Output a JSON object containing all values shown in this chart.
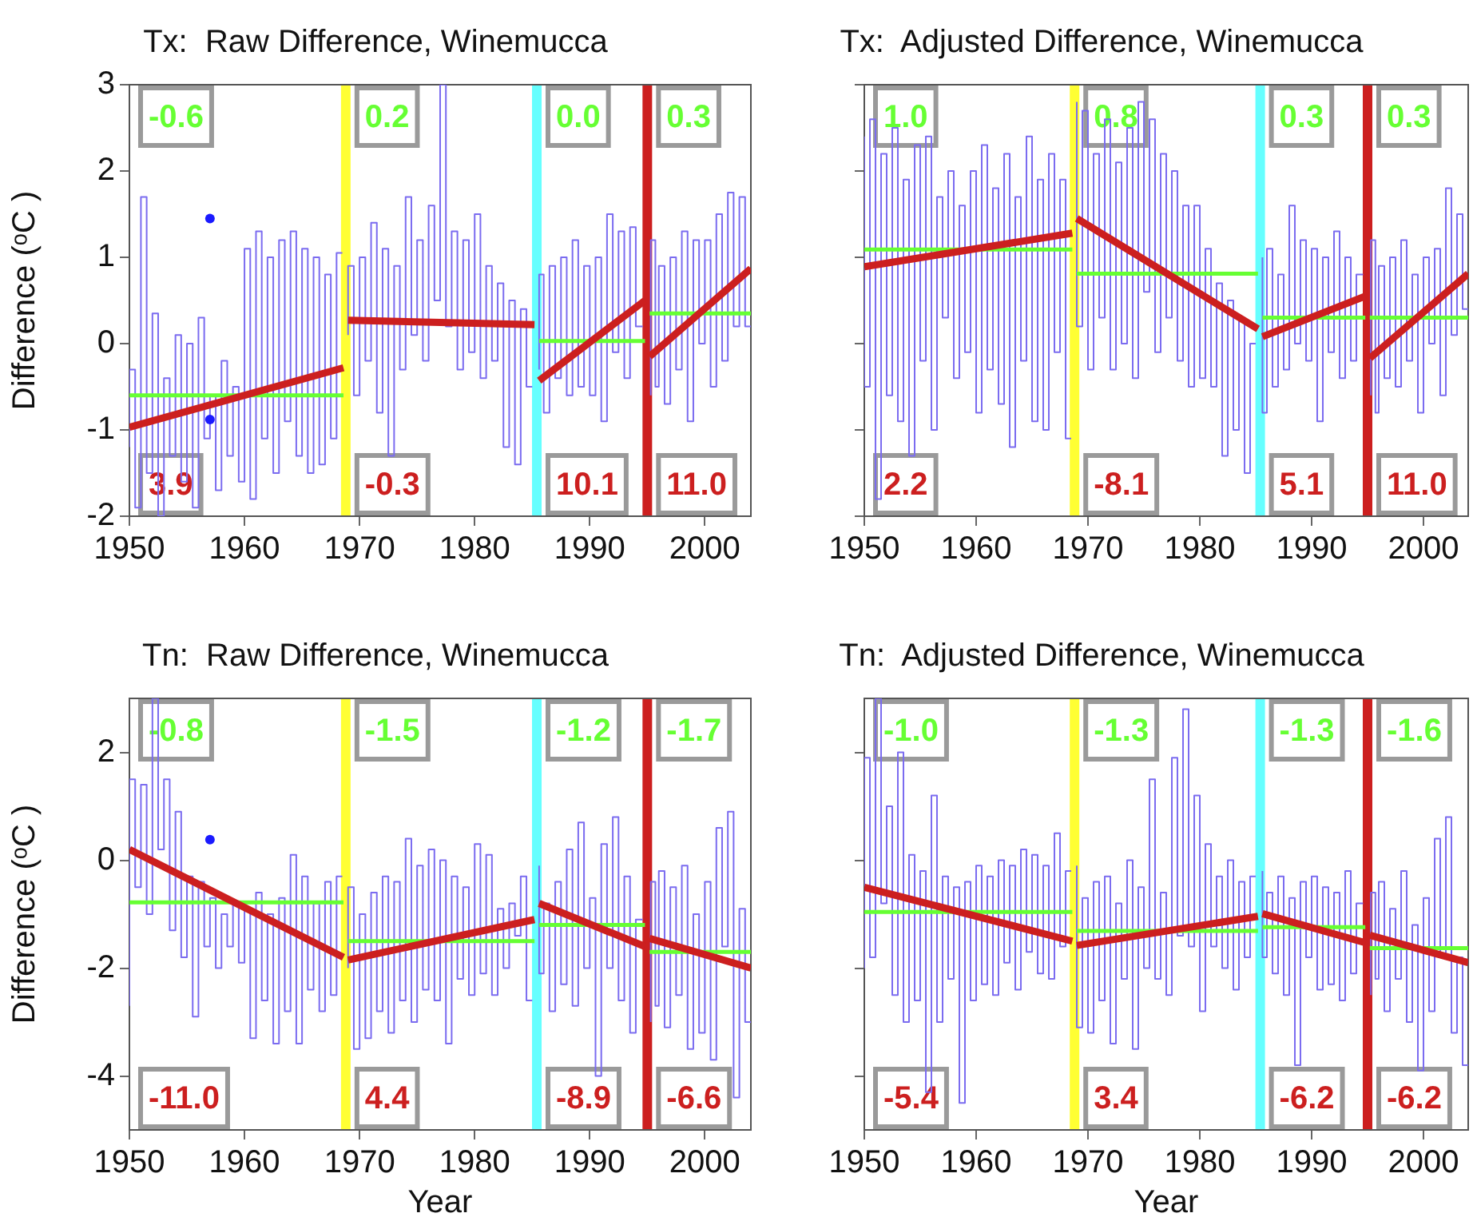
{
  "chart_data": [
    {
      "type": "line",
      "title": "Tx:  Raw Difference, Winemucca",
      "ylabel": "Difference (ᵒC )",
      "xlim": [
        1950,
        2004
      ],
      "xticks": [
        1950,
        1960,
        1970,
        1980,
        1990,
        2000
      ],
      "ylim": [
        -2,
        3
      ],
      "yticks": [
        -2,
        -1,
        0,
        1,
        2,
        3
      ],
      "legend": false,
      "x": [
        1950,
        1950.5,
        1951,
        1951.5,
        1952,
        1952.5,
        1953,
        1953.5,
        1954,
        1954.5,
        1955,
        1955.5,
        1956,
        1956.5,
        1957,
        1957.5,
        1958,
        1958.5,
        1959,
        1959.5,
        1960,
        1960.5,
        1961,
        1961.5,
        1962,
        1962.5,
        1963,
        1963.5,
        1964,
        1964.5,
        1965,
        1965.5,
        1966,
        1966.5,
        1967,
        1967.5,
        1968,
        1968.5,
        1968.8,
        1969,
        1969.5,
        1970,
        1970.5,
        1971,
        1971.5,
        1972,
        1972.5,
        1973,
        1973.5,
        1974,
        1974.5,
        1975,
        1975.5,
        1976,
        1976.5,
        1977,
        1977.5,
        1978,
        1978.5,
        1979,
        1979.5,
        1980,
        1980.5,
        1981,
        1981.5,
        1982,
        1982.5,
        1983,
        1983.5,
        1984,
        1984.5,
        1985,
        1985.4,
        1985.6,
        1986,
        1986.5,
        1987,
        1987.5,
        1988,
        1988.5,
        1989,
        1989.5,
        1990,
        1990.5,
        1991,
        1991.5,
        1992,
        1992.5,
        1993,
        1993.5,
        1994,
        1994.6,
        1995,
        1995.3,
        1995.7,
        1996,
        1996.5,
        1997,
        1997.5,
        1998,
        1998.5,
        1999,
        1999.5,
        2000,
        2000.5,
        2001,
        2001.5,
        2002,
        2002.5,
        2003,
        2003.5,
        2004
      ],
      "series": [
        {
          "type": "step",
          "color": "#7b6cf0",
          "values": [
            -1.2,
            -0.3,
            -1.9,
            1.7,
            -1.5,
            0.35,
            -2,
            -0.4,
            -1.3,
            0.1,
            -1.6,
            0,
            -1.9,
            0.3,
            -1.1,
            -0.6,
            -1.7,
            -0.2,
            -1.3,
            -0.5,
            -1.6,
            1.1,
            -1.8,
            1.3,
            -1.1,
            1.0,
            -1.5,
            1.2,
            -0.9,
            1.3,
            -1.3,
            1.1,
            -1.5,
            1.0,
            -1.4,
            0.8,
            -1.1,
            1.05,
            null,
            0.1,
            0.9,
            -0.6,
            1.0,
            -0.2,
            1.4,
            -0.8,
            1.1,
            -1.3,
            0.9,
            -0.3,
            1.7,
            0.1,
            1.2,
            -0.2,
            1.6,
            0.5,
            3.0,
            0.2,
            1.3,
            -0.3,
            1.2,
            -0.1,
            1.5,
            -0.4,
            0.9,
            -0.2,
            0.7,
            -1.2,
            0.5,
            -1.4,
            0.4,
            -0.5,
            null,
            -0.3,
            0.8,
            -0.8,
            0.9,
            -0.4,
            1.0,
            -0.6,
            1.2,
            -0.5,
            0.9,
            -0.6,
            1.0,
            -0.9,
            1.5,
            -0.1,
            1.3,
            -0.4,
            1.35,
            0.2,
            null,
            -0.6,
            1.2,
            -0.5,
            0.9,
            -0.7,
            1.0,
            -0.3,
            1.3,
            -0.9,
            1.2,
            0.0,
            1.2,
            -0.5,
            1.5,
            -0.2,
            1.75,
            0.2,
            1.7,
            0.2
          ]
        },
        {
          "type": "line",
          "color": "#cc1f1f",
          "x": [
            1950,
            1968.6,
            1968.8,
            1969,
            1985.2,
            1985.4,
            1985.6,
            1994.8,
            1995,
            1995.2,
            2004
          ],
          "values": [
            -0.97,
            -0.28,
            null,
            0.27,
            0.22,
            null,
            -0.43,
            0.5,
            null,
            -0.15,
            0.87
          ]
        },
        {
          "type": "line",
          "color": "#66ff33",
          "x": [
            1950,
            1968.6,
            1968.8,
            1969,
            1985.2,
            1985.4,
            1985.6,
            1994.8,
            1995,
            1995.2,
            2004
          ],
          "values": [
            -0.6,
            -0.6,
            null,
            null,
            null,
            null,
            0.03,
            0.03,
            null,
            0.35,
            0.35
          ]
        },
        {
          "type": "scatter",
          "color": "#1a1aff",
          "marker": "circle",
          "x": [
            1957,
            1957
          ],
          "values": [
            1.45,
            -0.88
          ]
        }
      ],
      "ref_lines": [
        {
          "axis": "x",
          "value": 1968.8,
          "color": "#ffff33"
        },
        {
          "axis": "x",
          "value": 1985.4,
          "color": "#66ffff"
        },
        {
          "axis": "x",
          "value": 1995,
          "color": "#cc1f1f"
        }
      ],
      "annotations": [
        "-0.6",
        "0.2",
        "0.0",
        "0.3",
        "3.9",
        "-0.3",
        "10.1",
        "11.0"
      ]
    },
    {
      "type": "line",
      "title": "Tx:  Adjusted Difference, Winemucca",
      "xlim": [
        1950,
        2004
      ],
      "xticks": [
        1950,
        1960,
        1970,
        1980,
        1990,
        2000
      ],
      "ylim": [
        -2,
        3
      ],
      "yticks": [
        -2,
        -1,
        0,
        1,
        2,
        3
      ],
      "legend": false,
      "tick_labels": "x",
      "x": [
        1950,
        1950.5,
        1951,
        1951.5,
        1952,
        1952.5,
        1953,
        1953.5,
        1954,
        1954.5,
        1955,
        1955.5,
        1956,
        1956.5,
        1957,
        1957.5,
        1958,
        1958.5,
        1959,
        1959.5,
        1960,
        1960.5,
        1961,
        1961.5,
        1962,
        1962.5,
        1963,
        1963.5,
        1964,
        1964.5,
        1965,
        1965.5,
        1966,
        1966.5,
        1967,
        1967.5,
        1968,
        1968.5,
        1968.8,
        1969,
        1969.5,
        1970,
        1970.5,
        1971,
        1971.5,
        1972,
        1972.5,
        1973,
        1973.5,
        1974,
        1974.5,
        1975,
        1975.5,
        1976,
        1976.5,
        1977,
        1977.5,
        1978,
        1978.5,
        1979,
        1979.5,
        1980,
        1980.5,
        1981,
        1981.5,
        1982,
        1982.5,
        1983,
        1983.5,
        1984,
        1984.5,
        1985,
        1985.4,
        1985.6,
        1986,
        1986.5,
        1987,
        1987.5,
        1988,
        1988.5,
        1989,
        1989.5,
        1990,
        1990.5,
        1991,
        1991.5,
        1992,
        1992.5,
        1993,
        1993.5,
        1994,
        1994.6,
        1995,
        1995.3,
        1995.7,
        1996,
        1996.5,
        1997,
        1997.5,
        1998,
        1998.5,
        1999,
        1999.5,
        2000,
        2000.5,
        2001,
        2001.5,
        2002,
        2002.5,
        2003,
        2003.5,
        2004
      ],
      "series": [
        {
          "type": "step",
          "color": "#7b6cf0",
          "values": [
            2.4,
            -0.5,
            2.6,
            -1.8,
            2.2,
            -0.6,
            2.5,
            -0.9,
            1.9,
            -1.3,
            2.3,
            -0.2,
            2.4,
            -1.0,
            1.7,
            0.3,
            2.0,
            -0.4,
            1.6,
            -0.1,
            2.0,
            -0.8,
            2.3,
            -0.3,
            1.8,
            -0.7,
            2.2,
            -1.2,
            1.7,
            -0.2,
            2.4,
            -0.9,
            1.9,
            -1.0,
            2.2,
            -0.1,
            1.9,
            -1.1,
            null,
            2.8,
            0.2,
            2.7,
            -0.3,
            2.2,
            0.3,
            2.6,
            -0.3,
            2.1,
            0.0,
            2.5,
            -0.4,
            2.8,
            0.6,
            2.6,
            -0.1,
            2.2,
            0.3,
            2.0,
            -0.2,
            1.6,
            -0.5,
            1.6,
            -0.4,
            1.1,
            -0.5,
            0.7,
            -1.3,
            0.5,
            -1.0,
            0.3,
            -1.5,
            0.0,
            null,
            1.0,
            -0.8,
            1.1,
            -0.5,
            0.8,
            -0.3,
            1.6,
            0.0,
            1.2,
            -0.2,
            1.1,
            -0.9,
            1.0,
            -0.1,
            1.3,
            -0.4,
            1.0,
            -0.2,
            0.8,
            null,
            -0.6,
            1.2,
            -0.8,
            0.9,
            -0.4,
            1.0,
            -0.5,
            1.2,
            -0.2,
            0.8,
            -0.8,
            1.0,
            0.0,
            1.1,
            -0.6,
            1.8,
            0.1,
            1.5,
            0.4
          ]
        },
        {
          "type": "line",
          "color": "#cc1f1f",
          "x": [
            1950,
            1968.6,
            1968.8,
            1969,
            1985.2,
            1985.4,
            1985.6,
            1994.8,
            1995,
            1995.2,
            2004
          ],
          "values": [
            0.89,
            1.28,
            null,
            1.45,
            0.17,
            null,
            0.08,
            0.55,
            null,
            -0.17,
            0.81
          ]
        },
        {
          "type": "line",
          "color": "#66ff33",
          "x": [
            1950,
            1968.6,
            1968.8,
            1969,
            1985.2,
            1985.4,
            1985.6,
            1994.8,
            1995,
            1995.2,
            2004
          ],
          "values": [
            1.09,
            1.09,
            null,
            0.81,
            0.81,
            null,
            0.3,
            0.3,
            null,
            0.3,
            0.3
          ]
        }
      ],
      "ref_lines": [
        {
          "axis": "x",
          "value": 1968.8,
          "color": "#ffff33"
        },
        {
          "axis": "x",
          "value": 1985.4,
          "color": "#66ffff"
        },
        {
          "axis": "x",
          "value": 1995,
          "color": "#cc1f1f"
        }
      ],
      "annotations": [
        "1.0",
        "0.8",
        "0.3",
        "0.3",
        "2.2",
        "-8.1",
        "5.1",
        "11.0"
      ]
    },
    {
      "type": "line",
      "title": "Tn:  Raw Difference, Winemucca",
      "ylabel": "Difference (ᵒC )",
      "xlabel": "Year",
      "xlim": [
        1950,
        2004
      ],
      "xticks": [
        1950,
        1960,
        1970,
        1980,
        1990,
        2000
      ],
      "ylim": [
        -5,
        3
      ],
      "yticks": [
        -4,
        -2,
        0,
        2
      ],
      "legend": false,
      "x": [
        1950,
        1950.5,
        1951,
        1951.5,
        1952,
        1952.5,
        1953,
        1953.5,
        1954,
        1954.5,
        1955,
        1955.5,
        1956,
        1956.5,
        1957,
        1957.5,
        1958,
        1958.5,
        1959,
        1959.5,
        1960,
        1960.5,
        1961,
        1961.5,
        1962,
        1962.5,
        1963,
        1963.5,
        1964,
        1964.5,
        1965,
        1965.5,
        1966,
        1966.5,
        1967,
        1967.5,
        1968,
        1968.5,
        1968.8,
        1969,
        1969.5,
        1970,
        1970.5,
        1971,
        1971.5,
        1972,
        1972.5,
        1973,
        1973.5,
        1974,
        1974.5,
        1975,
        1975.5,
        1976,
        1976.5,
        1977,
        1977.5,
        1978,
        1978.5,
        1979,
        1979.5,
        1980,
        1980.5,
        1981,
        1981.5,
        1982,
        1982.5,
        1983,
        1983.5,
        1984,
        1984.5,
        1985,
        1985.4,
        1985.6,
        1986,
        1986.5,
        1987,
        1987.5,
        1988,
        1988.5,
        1989,
        1989.5,
        1990,
        1990.5,
        1991,
        1991.5,
        1992,
        1992.5,
        1993,
        1993.5,
        1994,
        1994.6,
        1995,
        1995.3,
        1995.7,
        1996,
        1996.5,
        1997,
        1997.5,
        1998,
        1998.5,
        1999,
        1999.5,
        2000,
        2000.5,
        2001,
        2001.5,
        2002,
        2002.5,
        2003,
        2003.5,
        2004
      ],
      "series": [
        {
          "type": "step",
          "color": "#7b6cf0",
          "values": [
            -2.7,
            1.5,
            -0.5,
            1.4,
            -1.0,
            3.0,
            0.2,
            1.5,
            -1.3,
            0.9,
            -1.8,
            -0.3,
            -2.9,
            -0.4,
            -1.6,
            -0.7,
            -2.0,
            -1.0,
            -1.6,
            -0.8,
            -1.9,
            -0.9,
            -3.3,
            -0.6,
            -2.6,
            -1.0,
            -3.4,
            -0.7,
            -2.8,
            0.1,
            -3.4,
            -0.3,
            -2.4,
            -0.8,
            -2.8,
            -0.4,
            -2.5,
            -0.3,
            null,
            -2.0,
            -0.5,
            -3.5,
            -1.0,
            -3.3,
            -0.6,
            -2.8,
            -0.3,
            -3.2,
            -0.4,
            -2.6,
            0.4,
            -3.0,
            -0.1,
            -2.4,
            0.2,
            -2.6,
            0.0,
            -3.4,
            -0.3,
            -2.2,
            -0.5,
            -2.5,
            0.3,
            -2.1,
            0.1,
            -2.5,
            -0.9,
            -2.0,
            -0.8,
            -1.4,
            -0.3,
            -2.6,
            null,
            -0.1,
            -2.1,
            -0.8,
            -2.8,
            -0.4,
            -2.3,
            0.2,
            -2.7,
            0.7,
            -2.0,
            -0.7,
            -4.0,
            0.3,
            -2.0,
            0.8,
            -2.6,
            -0.3,
            -3.2,
            -1.1,
            null,
            -3.0,
            -0.4,
            -2.7,
            -0.2,
            -3.1,
            -0.5,
            -2.5,
            -0.1,
            -3.5,
            -1.0,
            -3.2,
            -0.4,
            -3.7,
            0.6,
            -1.6,
            0.9,
            -4.4,
            -0.9,
            -3.0
          ]
        },
        {
          "type": "line",
          "color": "#cc1f1f",
          "x": [
            1950,
            1968.6,
            1968.8,
            1969,
            1985.2,
            1985.4,
            1985.6,
            1994.8,
            1995,
            1995.2,
            2004
          ],
          "values": [
            0.2,
            -1.8,
            null,
            -1.85,
            -1.1,
            null,
            -0.8,
            -1.6,
            null,
            -1.45,
            -2.0
          ]
        },
        {
          "type": "line",
          "color": "#66ff33",
          "x": [
            1950,
            1968.6,
            1968.8,
            1969,
            1985.2,
            1985.4,
            1985.6,
            1994.8,
            1995,
            1995.2,
            2004
          ],
          "values": [
            -0.78,
            -0.78,
            null,
            -1.5,
            -1.5,
            null,
            -1.2,
            -1.2,
            null,
            -1.7,
            -1.7
          ]
        },
        {
          "type": "scatter",
          "color": "#1a1aff",
          "marker": "circle",
          "x": [
            1957
          ],
          "values": [
            0.38
          ]
        }
      ],
      "ref_lines": [
        {
          "axis": "x",
          "value": 1968.8,
          "color": "#ffff33"
        },
        {
          "axis": "x",
          "value": 1985.4,
          "color": "#66ffff"
        },
        {
          "axis": "x",
          "value": 1995,
          "color": "#cc1f1f"
        }
      ],
      "annotations": [
        "-0.8",
        "-1.5",
        "-1.2",
        "-1.7",
        "-11.0",
        "4.4",
        "-8.9",
        "-6.6"
      ]
    },
    {
      "type": "line",
      "title": "Tn:  Adjusted Difference, Winemucca",
      "xlabel": "Year",
      "xlim": [
        1950,
        2004
      ],
      "xticks": [
        1950,
        1960,
        1970,
        1980,
        1990,
        2000
      ],
      "ylim": [
        -5,
        3
      ],
      "yticks": [
        -4,
        -2,
        0,
        2
      ],
      "legend": false,
      "tick_labels": "x",
      "x": [
        1950,
        1950.5,
        1951,
        1951.5,
        1952,
        1952.5,
        1953,
        1953.5,
        1954,
        1954.5,
        1955,
        1955.5,
        1956,
        1956.5,
        1957,
        1957.5,
        1958,
        1958.5,
        1959,
        1959.5,
        1960,
        1960.5,
        1961,
        1961.5,
        1962,
        1962.5,
        1963,
        1963.5,
        1964,
        1964.5,
        1965,
        1965.5,
        1966,
        1966.5,
        1967,
        1967.5,
        1968,
        1968.5,
        1968.8,
        1969,
        1969.5,
        1970,
        1970.5,
        1971,
        1971.5,
        1972,
        1972.5,
        1973,
        1973.5,
        1974,
        1974.5,
        1975,
        1975.5,
        1976,
        1976.5,
        1977,
        1977.5,
        1978,
        1978.5,
        1979,
        1979.5,
        1980,
        1980.5,
        1981,
        1981.5,
        1982,
        1982.5,
        1983,
        1983.5,
        1984,
        1984.5,
        1985,
        1985.4,
        1985.6,
        1986,
        1986.5,
        1987,
        1987.5,
        1988,
        1988.5,
        1989,
        1989.5,
        1990,
        1990.5,
        1991,
        1991.5,
        1992,
        1992.5,
        1993,
        1993.5,
        1994,
        1994.6,
        1995,
        1995.3,
        1995.7,
        1996,
        1996.5,
        1997,
        1997.5,
        1998,
        1998.5,
        1999,
        1999.5,
        2000,
        2000.5,
        2001,
        2001.5,
        2002,
        2002.5,
        2003,
        2003.5,
        2004
      ],
      "series": [
        {
          "type": "step",
          "color": "#7b6cf0",
          "values": [
            -2.0,
            1.9,
            -1.8,
            3.0,
            -0.8,
            1.0,
            -2.5,
            2.0,
            -3.0,
            0.1,
            -2.6,
            -0.2,
            -4.3,
            1.2,
            -3.0,
            -0.3,
            -2.2,
            -0.5,
            -4.5,
            -0.4,
            -2.6,
            -0.1,
            -2.3,
            -0.3,
            -2.5,
            0.0,
            -1.9,
            -0.1,
            -2.4,
            0.2,
            -1.7,
            0.1,
            -2.1,
            -0.1,
            -2.2,
            0.5,
            -1.6,
            -0.2,
            null,
            -0.1,
            -3.1,
            -0.7,
            -3.2,
            -0.4,
            -2.6,
            -0.3,
            -3.4,
            -0.8,
            -2.2,
            0.0,
            -3.5,
            -0.5,
            -2.0,
            1.5,
            -2.2,
            -0.6,
            -2.5,
            1.9,
            -1.4,
            2.8,
            -1.6,
            1.2,
            -2.8,
            0.3,
            -1.6,
            -0.3,
            -2.0,
            0.0,
            -2.4,
            -0.4,
            -1.8,
            -0.3,
            null,
            -0.2,
            -1.8,
            -0.6,
            -2.1,
            -0.3,
            -2.5,
            -0.7,
            -3.8,
            -0.4,
            -1.8,
            -0.3,
            -2.4,
            -0.5,
            -2.3,
            -0.6,
            -2.6,
            -0.2,
            -2.1,
            -0.8,
            null,
            -2.5,
            -0.6,
            -2.2,
            -0.4,
            -2.8,
            -0.9,
            -2.2,
            -0.2,
            -3.0,
            -1.2,
            -3.9,
            -0.7,
            -2.8,
            0.4,
            -1.8,
            0.8,
            -3.2,
            -1.8,
            -3.8
          ]
        },
        {
          "type": "line",
          "color": "#cc1f1f",
          "x": [
            1950,
            1968.6,
            1968.8,
            1969,
            1985.2,
            1985.4,
            1985.6,
            1994.8,
            1995,
            1995.2,
            2004
          ],
          "values": [
            -0.5,
            -1.5,
            null,
            -1.58,
            -1.04,
            null,
            -0.99,
            -1.53,
            null,
            -1.39,
            -1.9
          ]
        },
        {
          "type": "line",
          "color": "#66ff33",
          "x": [
            1950,
            1968.6,
            1968.8,
            1969,
            1985.2,
            1985.4,
            1985.6,
            1994.8,
            1995,
            1995.2,
            2004
          ],
          "values": [
            -0.96,
            -0.96,
            null,
            -1.31,
            -1.31,
            null,
            -1.24,
            -1.24,
            null,
            -1.63,
            -1.63
          ]
        }
      ],
      "ref_lines": [
        {
          "axis": "x",
          "value": 1968.8,
          "color": "#ffff33"
        },
        {
          "axis": "x",
          "value": 1985.4,
          "color": "#66ffff"
        },
        {
          "axis": "x",
          "value": 1995,
          "color": "#cc1f1f"
        }
      ],
      "annotations": [
        "-1.0",
        "-1.3",
        "-1.3",
        "-1.6",
        "-5.4",
        "3.4",
        "-6.2",
        "-6.2"
      ]
    }
  ]
}
